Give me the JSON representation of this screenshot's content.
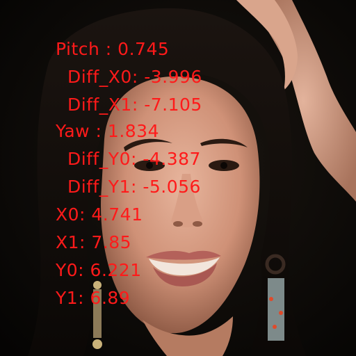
{
  "overlay": {
    "color": "#ff1a1a",
    "lines": [
      "Pitch : 0.745",
      "Diff_X0: -3.996",
      "Diff_X1: -7.105",
      "Yaw : 1.834",
      "Diff_Y0: -4.387",
      "Diff_Y1: -5.056",
      "X0: 4.741",
      "X1: 7.85",
      "Y0: 6.221",
      "Y1: 6.89"
    ]
  }
}
